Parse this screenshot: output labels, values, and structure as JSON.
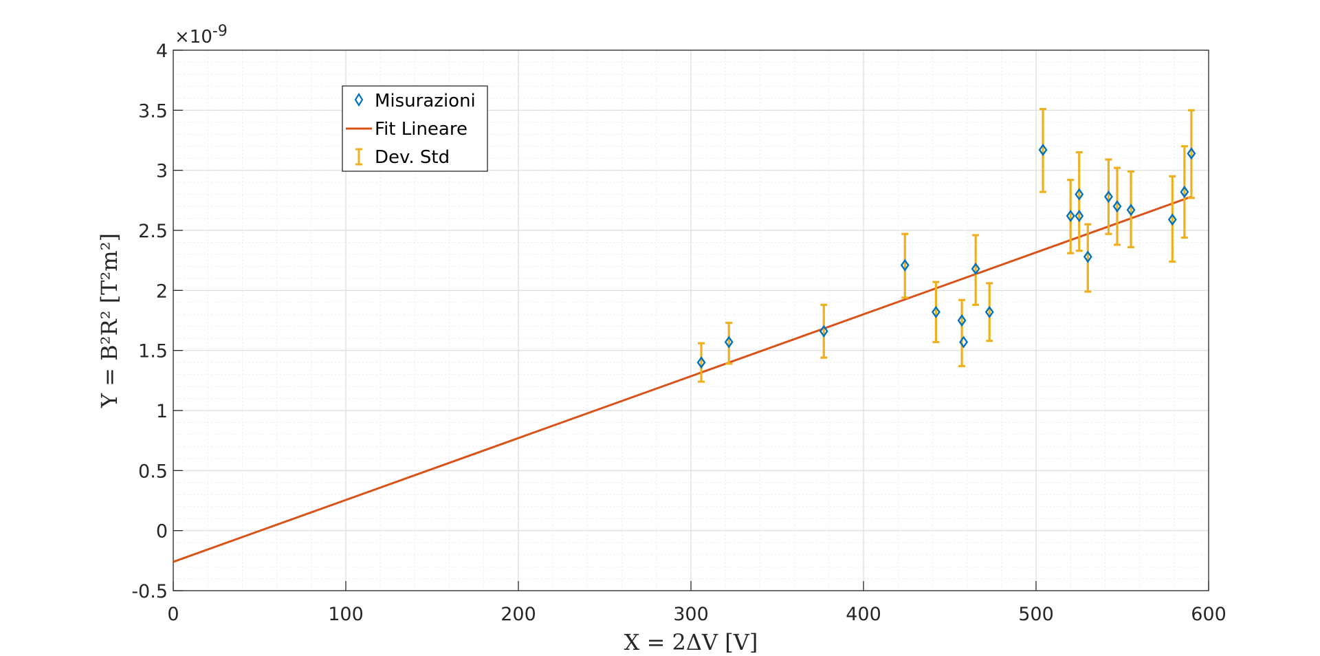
{
  "chart_data": {
    "type": "scatter",
    "title": "",
    "xlabel": "X = 2ΔV [V]",
    "ylabel": "Y = B²R² [T²m²]",
    "exponent_label": "×10",
    "exponent_power": "-9",
    "xlim": [
      0,
      600
    ],
    "ylim": [
      -0.5,
      4
    ],
    "x_ticks": [
      0,
      100,
      200,
      300,
      400,
      500,
      600
    ],
    "y_ticks": [
      -0.5,
      0,
      0.5,
      1,
      1.5,
      2,
      2.5,
      3,
      3.5,
      4
    ],
    "x_tick_labels": [
      "0",
      "100",
      "200",
      "300",
      "400",
      "500",
      "600"
    ],
    "y_tick_labels": [
      "-0.5",
      "0",
      "0.5",
      "1",
      "1.5",
      "2",
      "2.5",
      "3",
      "3.5",
      "4"
    ],
    "grid": true,
    "minor_grid": true,
    "legend_position": "top-left",
    "series": [
      {
        "name": "Misurazioni",
        "kind": "markers",
        "color": "#0072BD",
        "points": [
          {
            "x": 306,
            "y": 1.4
          },
          {
            "x": 322,
            "y": 1.57
          },
          {
            "x": 377,
            "y": 1.66
          },
          {
            "x": 424,
            "y": 2.21
          },
          {
            "x": 442,
            "y": 1.82
          },
          {
            "x": 457,
            "y": 1.75
          },
          {
            "x": 458,
            "y": 1.57
          },
          {
            "x": 465,
            "y": 2.18
          },
          {
            "x": 473,
            "y": 1.82
          },
          {
            "x": 504,
            "y": 3.17
          },
          {
            "x": 520,
            "y": 2.62
          },
          {
            "x": 525,
            "y": 2.62
          },
          {
            "x": 525,
            "y": 2.8
          },
          {
            "x": 530,
            "y": 2.28
          },
          {
            "x": 542,
            "y": 2.78
          },
          {
            "x": 547,
            "y": 2.7
          },
          {
            "x": 555,
            "y": 2.67
          },
          {
            "x": 579,
            "y": 2.59
          },
          {
            "x": 586,
            "y": 2.82
          },
          {
            "x": 590,
            "y": 3.14
          }
        ]
      },
      {
        "name": "Fit Lineare",
        "kind": "line",
        "color": "#D95319",
        "points": [
          {
            "x": 0,
            "y": -0.26
          },
          {
            "x": 590,
            "y": 2.78
          }
        ]
      },
      {
        "name": "Dev. Std",
        "kind": "errorbar",
        "color": "#EDB120",
        "bars": [
          {
            "x": 306,
            "low": 1.24,
            "high": 1.56
          },
          {
            "x": 322,
            "low": 1.39,
            "high": 1.73
          },
          {
            "x": 377,
            "low": 1.44,
            "high": 1.88
          },
          {
            "x": 424,
            "low": 1.94,
            "high": 2.47
          },
          {
            "x": 442,
            "low": 1.57,
            "high": 2.07
          },
          {
            "x": 457,
            "low": 1.37,
            "high": 1.92
          },
          {
            "x": 465,
            "low": 1.88,
            "high": 2.46
          },
          {
            "x": 473,
            "low": 1.58,
            "high": 2.06
          },
          {
            "x": 504,
            "low": 2.82,
            "high": 3.51
          },
          {
            "x": 520,
            "low": 2.31,
            "high": 2.92
          },
          {
            "x": 525,
            "low": 2.33,
            "high": 3.15
          },
          {
            "x": 530,
            "low": 1.99,
            "high": 2.55
          },
          {
            "x": 542,
            "low": 2.47,
            "high": 3.09
          },
          {
            "x": 547,
            "low": 2.38,
            "high": 3.02
          },
          {
            "x": 555,
            "low": 2.36,
            "high": 2.99
          },
          {
            "x": 579,
            "low": 2.24,
            "high": 2.95
          },
          {
            "x": 586,
            "low": 2.44,
            "high": 3.2
          },
          {
            "x": 590,
            "low": 2.77,
            "high": 3.5
          }
        ]
      }
    ]
  }
}
